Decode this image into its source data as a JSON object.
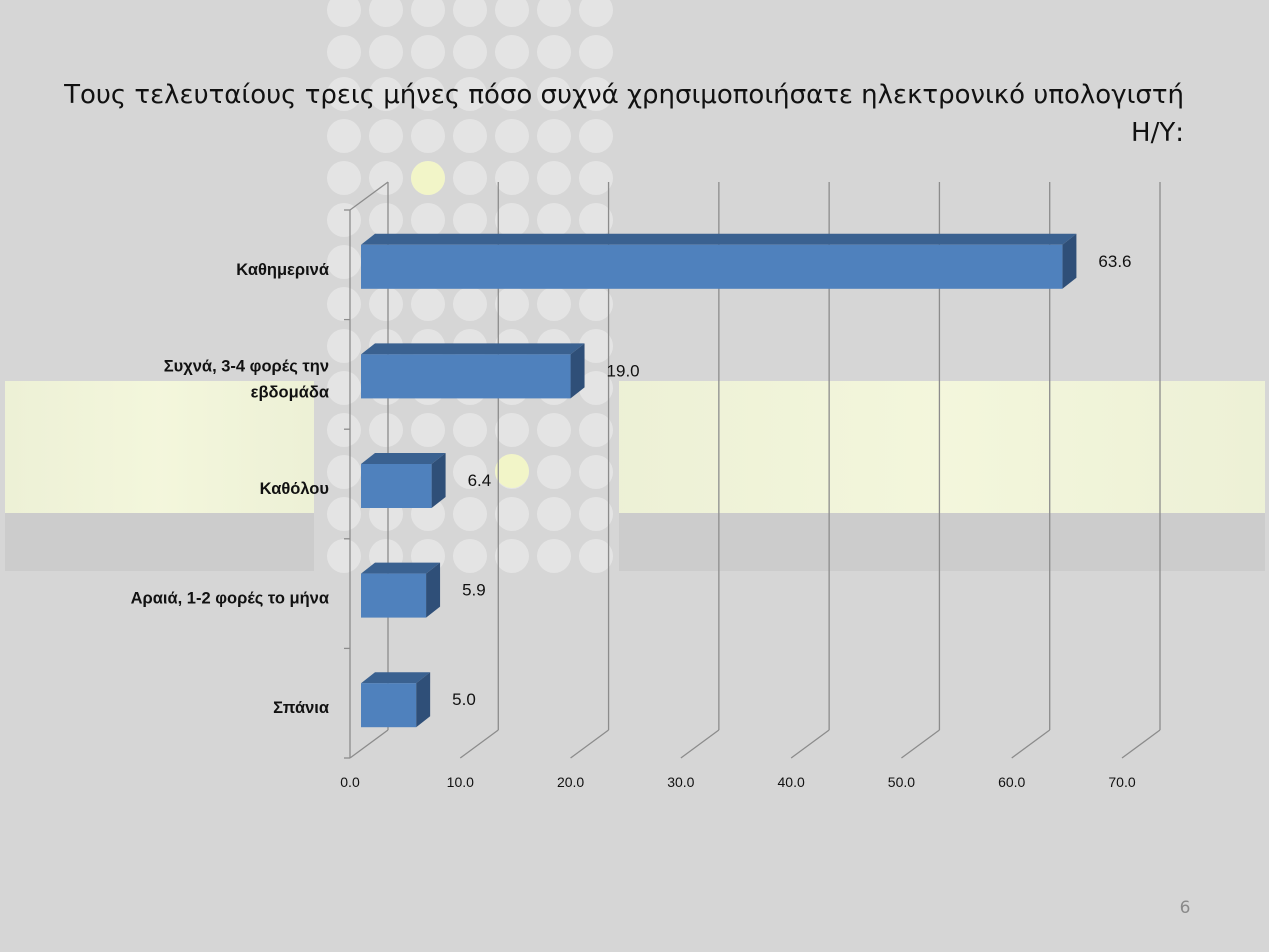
{
  "slide": {
    "title": "Τους τελευταίους τρεις μήνες πόσο συχνά χρησιμοποιήσατε ηλεκτρονικό υπολογιστή Η/Υ:",
    "page_number": "6"
  },
  "colors": {
    "bar_front": "#4f81bd",
    "bar_top": "#3a6190",
    "bar_side": "#2f4f78",
    "grid": "#8c8c8c",
    "background": "#d6d6d6"
  },
  "chart_data": {
    "type": "bar",
    "orientation": "horizontal",
    "style": "3d-clustered",
    "title": "Τους τελευταίους τρεις μήνες πόσο συχνά χρησιμοποιήσατε ηλεκτρονικό υπολογιστή Η/Υ:",
    "categories": [
      "Καθημερινά",
      "Συχνά, 3-4 φορές την εβδομάδα",
      "Καθόλου",
      "Αραιά, 1-2 φορές το μήνα",
      "Σπάνια"
    ],
    "category_label_lines": [
      [
        "Καθημερινά"
      ],
      [
        "Συχνά, 3-4 φορές την",
        "εβδομάδα"
      ],
      [
        "Καθόλου"
      ],
      [
        "Αραιά, 1-2 φορές το μήνα"
      ],
      [
        "Σπάνια"
      ]
    ],
    "values": [
      63.6,
      19.0,
      6.4,
      5.9,
      5.0
    ],
    "data_labels": [
      "63.6",
      "19.0",
      "6.4",
      "5.9",
      "5.0"
    ],
    "xlim": [
      0,
      70
    ],
    "x_ticks": [
      "0.0",
      "10.0",
      "20.0",
      "30.0",
      "40.0",
      "50.0",
      "60.0",
      "70.0"
    ],
    "grid": true,
    "legend": "none"
  }
}
